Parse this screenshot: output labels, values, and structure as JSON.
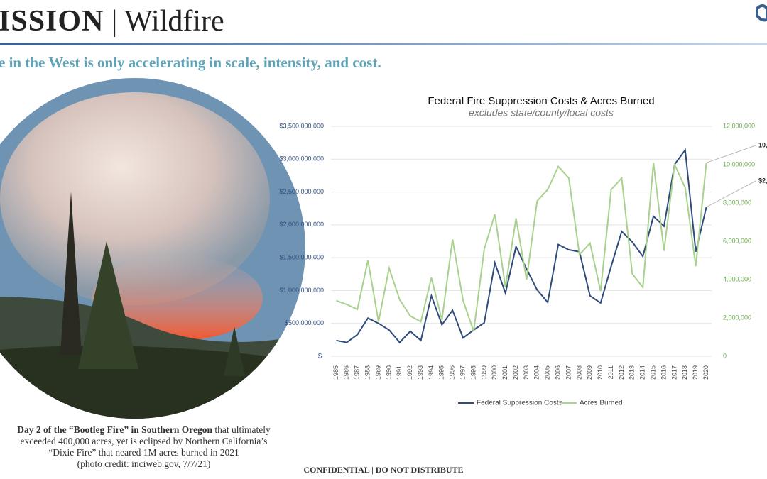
{
  "header": {
    "title_left": "ISSION",
    "separator": "|",
    "title_right": "Wildfire"
  },
  "subtitle": "e in the West is only accelerating in scale, intensity, and cost.",
  "caption": {
    "line1_bold": "Day 2 of the “Bootleg Fire” in Southern Oregon",
    "line1_rest": " that ultimately",
    "line2": "exceeded 400,000 acres, yet is eclipsed by Northern California’s",
    "line3": "“Dixie Fire” that neared 1M acres burned in 2021",
    "line4": "(photo credit: inciweb.gov, 7/7/21)"
  },
  "footer": "CONFIDENTIAL | DO NOT DISTRIBUTE",
  "chart_data": {
    "type": "line",
    "title": "Federal Fire Suppression Costs & Acres Burned",
    "subtitle": "excludes state/county/local costs",
    "categories": [
      "1985",
      "1986",
      "1987",
      "1988",
      "1989",
      "1990",
      "1991",
      "1992",
      "1993",
      "1994",
      "1995",
      "1996",
      "1997",
      "1998",
      "1999",
      "2000",
      "2001",
      "2002",
      "2003",
      "2004",
      "2005",
      "2006",
      "2007",
      "2008",
      "2009",
      "2010",
      "2011",
      "2012",
      "2013",
      "2014",
      "2015",
      "2016",
      "2017",
      "2018",
      "2019",
      "2020"
    ],
    "series": [
      {
        "name": "Federal Suppression Costs",
        "color": "#2f4b7c",
        "axis": "y",
        "values": [
          240000000,
          210000000,
          330000000,
          580000000,
          500000000,
          400000000,
          210000000,
          380000000,
          240000000,
          920000000,
          480000000,
          700000000,
          280000000,
          400000000,
          510000000,
          1420000000,
          960000000,
          1670000000,
          1330000000,
          1010000000,
          820000000,
          1700000000,
          1620000000,
          1590000000,
          920000000,
          810000000,
          1370000000,
          1900000000,
          1740000000,
          1520000000,
          2130000000,
          1980000000,
          2920000000,
          3140000000,
          1590000000,
          2270000000
        ]
      },
      {
        "name": "Acres Burned",
        "color": "#a9d18e",
        "axis": "y2",
        "values": [
          2900000,
          2700000,
          2450000,
          5000000,
          1800000,
          4600000,
          2950000,
          2100000,
          1800000,
          4100000,
          1900000,
          6100000,
          2900000,
          1300000,
          5600000,
          7400000,
          3600000,
          7200000,
          4000000,
          8100000,
          8700000,
          9900000,
          9300000,
          5300000,
          5900000,
          3400000,
          8700000,
          9300000,
          4300000,
          3600000,
          10100000,
          5500000,
          10000000,
          8800000,
          4700000,
          10100000
        ]
      }
    ],
    "ylim": [
      0,
      3500000000
    ],
    "yticks": [
      {
        "value": 0,
        "label": "$-"
      },
      {
        "value": 500000000,
        "label": "$500,000,000"
      },
      {
        "value": 1000000000,
        "label": "$1,000,000,000"
      },
      {
        "value": 1500000000,
        "label": "$1,500,000,000"
      },
      {
        "value": 2000000000,
        "label": "$2,000,000,000"
      },
      {
        "value": 2500000000,
        "label": "$2,500,000,000"
      },
      {
        "value": 3000000000,
        "label": "$3,000,000,000"
      },
      {
        "value": 3500000000,
        "label": "$3,500,000,000"
      }
    ],
    "y2lim": [
      0,
      12000000
    ],
    "y2ticks": [
      0,
      {
        "value": 2000000,
        "label": "2,000,000"
      },
      {
        "value": 4000000,
        "label": "4,000,000"
      },
      {
        "value": 6000000,
        "label": "6,000,000"
      },
      {
        "value": 8000000,
        "label": "8,000,000"
      },
      {
        "value": 10000000,
        "label": "10,000,000"
      },
      {
        "value": 12000000,
        "label": "12,000,000"
      }
    ],
    "grid": true,
    "legend": "bottom",
    "annotations": [
      "10,",
      "$2,"
    ]
  }
}
